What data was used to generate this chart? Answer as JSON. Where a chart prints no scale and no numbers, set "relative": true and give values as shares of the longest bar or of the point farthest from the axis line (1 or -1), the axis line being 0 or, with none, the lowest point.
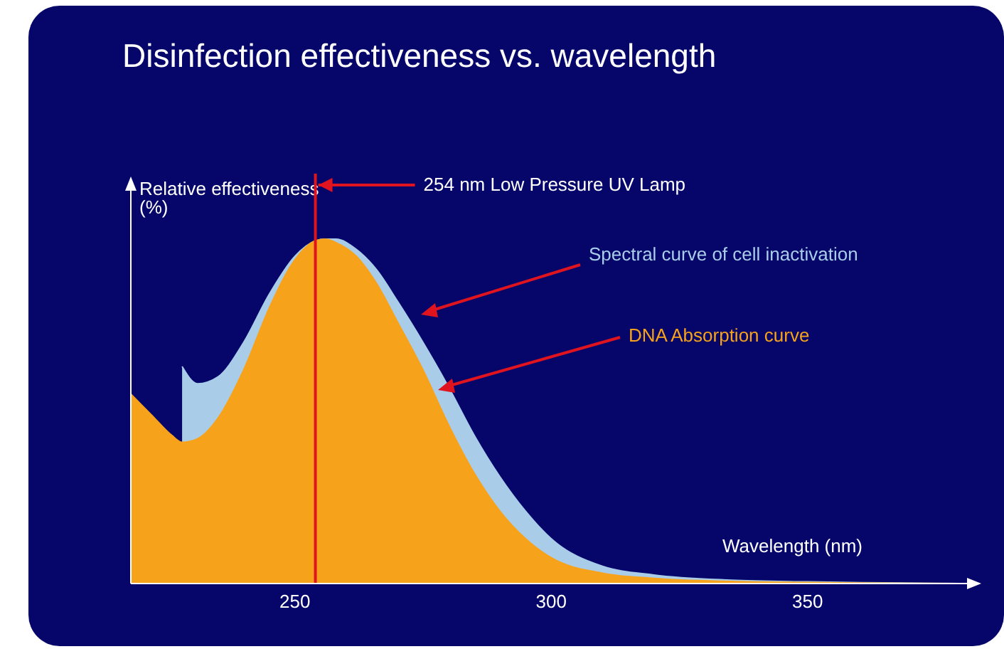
{
  "chart_data": {
    "type": "area",
    "title": "Disinfection effectiveness vs. wavelength",
    "xlabel": "Wavelength (nm)",
    "ylabel": "Relative effectiveness (%)",
    "relative": true,
    "x": [
      218,
      222,
      226,
      228,
      231,
      235,
      240,
      245,
      250,
      254,
      256,
      258,
      262,
      266,
      270,
      275,
      280,
      285,
      290,
      295,
      300,
      310,
      320,
      335,
      350,
      365,
      380
    ],
    "series": [
      {
        "name": "Spectral curve of cell inactivation",
        "color": "#a9cde9",
        "values": [
          null,
          null,
          null,
          0.63,
          0.58,
          0.6,
          0.7,
          0.84,
          0.95,
          0.995,
          1.0,
          1.0,
          0.97,
          0.91,
          0.82,
          0.7,
          0.57,
          0.43,
          0.31,
          0.21,
          0.13,
          0.05,
          0.025,
          0.01,
          0.005,
          0.002,
          0
        ]
      },
      {
        "name": "DNA Absorption curve",
        "color": "#f7a21b",
        "values": [
          0.55,
          0.49,
          0.43,
          0.41,
          0.42,
          0.48,
          0.62,
          0.8,
          0.94,
          0.995,
          1.0,
          0.99,
          0.95,
          0.87,
          0.76,
          0.62,
          0.46,
          0.32,
          0.21,
          0.13,
          0.075,
          0.03,
          0.015,
          0.006,
          0.003,
          0.001,
          0
        ]
      }
    ],
    "xlim": [
      218,
      380
    ],
    "xticks": [
      250,
      300,
      350
    ],
    "grid": false,
    "legend": false,
    "ref_lines": [
      {
        "axis": "x",
        "value": 254,
        "label": "254 nm Low Pressure UV Lamp",
        "color": "#e0141e"
      }
    ]
  }
}
